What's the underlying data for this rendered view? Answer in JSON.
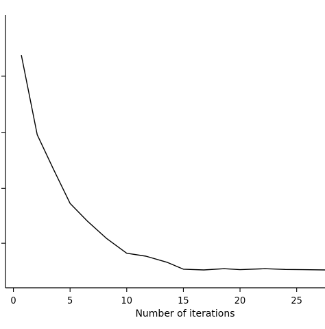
{
  "chart_data": {
    "type": "line",
    "xlabel": "Number of iterations",
    "ylabel": "",
    "xlim": [
      -0.7,
      27.5
    ],
    "ylim": [
      0,
      1
    ],
    "x_ticks": [
      0,
      5,
      10,
      15,
      20,
      25
    ],
    "y_ticks": [
      0.085,
      0.305,
      0.53,
      0.755
    ],
    "y_tick_labels_visible": false,
    "grid": false,
    "series": [
      {
        "values": [
          {
            "x": 0.7,
            "y": 0.84
          },
          {
            "x": 2.1,
            "y": 0.52
          },
          {
            "x": 3.5,
            "y": 0.385
          },
          {
            "x": 5.0,
            "y": 0.245
          },
          {
            "x": 6.5,
            "y": 0.175
          },
          {
            "x": 8.2,
            "y": 0.105
          },
          {
            "x": 10.0,
            "y": 0.045
          },
          {
            "x": 11.7,
            "y": 0.033
          },
          {
            "x": 13.6,
            "y": 0.008
          },
          {
            "x": 15.0,
            "y": -0.019
          },
          {
            "x": 16.8,
            "y": -0.022
          },
          {
            "x": 18.6,
            "y": -0.017
          },
          {
            "x": 20.0,
            "y": -0.021
          },
          {
            "x": 22.2,
            "y": -0.017
          },
          {
            "x": 24.0,
            "y": -0.02
          },
          {
            "x": 25.5,
            "y": -0.021
          },
          {
            "x": 27.5,
            "y": -0.022
          }
        ]
      }
    ]
  }
}
